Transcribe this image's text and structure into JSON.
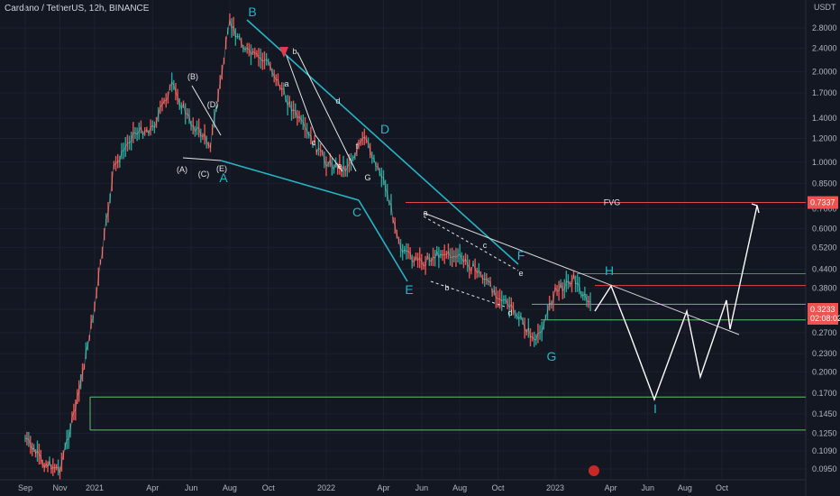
{
  "header": {
    "title": "Cardano / TetherUS, 12h, BINANCE"
  },
  "chart_data": {
    "type": "line",
    "title": "Cardano / TetherUS, 12h, BINANCE",
    "yaxis": {
      "unit": "USDT",
      "scale": "log",
      "ylim": [
        0.085,
        3.4
      ],
      "ticks": [
        "2.8000",
        "2.4000",
        "2.0000",
        "1.7000",
        "1.4000",
        "1.2000",
        "1.0000",
        "0.8500",
        "0.7000",
        "0.6000",
        "0.5200",
        "0.4400",
        "0.3800",
        "0.3233",
        "0.2700",
        "0.2300",
        "0.2000",
        "0.1700",
        "0.1450",
        "0.1250",
        "0.1090",
        "0.0950"
      ]
    },
    "xaxis": {
      "ticks": [
        "Sep",
        "Nov",
        "2021",
        "Apr",
        "Jun",
        "Aug",
        "Oct",
        "2022",
        "Apr",
        "Jun",
        "Aug",
        "Oct",
        "2023",
        "Apr",
        "Jun",
        "Aug",
        "Oct"
      ]
    },
    "series": [
      {
        "x": [
          "2020-09",
          "2020-10",
          "2020-11",
          "2020-12",
          "2021-01",
          "2021-02",
          "2021-03",
          "2021-04",
          "2021-05",
          "2021-06",
          "2021-07",
          "2021-08",
          "2021-09",
          "2021-10",
          "2021-11",
          "2021-12",
          "2022-01",
          "2022-02",
          "2022-03",
          "2022-04",
          "2022-05",
          "2022-06",
          "2022-07",
          "2022-08",
          "2022-09",
          "2022-10",
          "2022-11",
          "2022-12",
          "2023-01",
          "2023-02",
          "2023-03"
        ],
        "values": [
          0.12,
          0.1,
          0.095,
          0.16,
          0.33,
          0.95,
          1.25,
          1.3,
          1.8,
          1.35,
          1.15,
          2.9,
          2.3,
          2.15,
          1.6,
          1.25,
          1.0,
          0.95,
          1.2,
          0.88,
          0.5,
          0.46,
          0.5,
          0.48,
          0.43,
          0.36,
          0.31,
          0.25,
          0.37,
          0.41,
          0.3233
        ]
      }
    ],
    "price_tags": [
      {
        "label": "0.7337",
        "value": 0.7337,
        "color": "#ef5350"
      },
      {
        "label": "0.3233",
        "value": 0.3233,
        "color": "#ef5350",
        "countdown": "02:08:02"
      }
    ],
    "fvg": {
      "label": "FVG",
      "value": 0.7337
    },
    "annotations": {
      "waves": [
        "B",
        "A",
        "C",
        "D",
        "E",
        "F",
        "G",
        "H",
        "I"
      ],
      "sub_waves": [
        "(A)",
        "(B)",
        "(C)",
        "(D)",
        "(E)",
        "a",
        "b",
        "c",
        "d",
        "e",
        "f",
        "G",
        "a",
        "b",
        "c",
        "d",
        "e"
      ]
    }
  }
}
